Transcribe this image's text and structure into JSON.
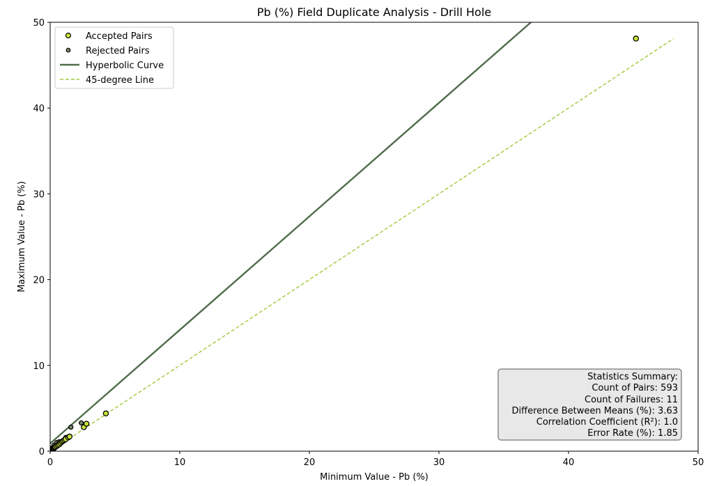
{
  "chart_data": {
    "type": "scatter",
    "title": "Pb (%) Field Duplicate Analysis - Drill Hole",
    "xlabel": "Minimum Value - Pb (%)",
    "ylabel": "Maximum Value - Pb (%)",
    "xlim": [
      0,
      50
    ],
    "ylim": [
      0,
      50
    ],
    "xticks": [
      0,
      10,
      20,
      30,
      40,
      50
    ],
    "yticks": [
      0,
      10,
      20,
      30,
      40,
      50
    ],
    "grid": false,
    "legend_position": "top-left",
    "series": [
      {
        "name": "Accepted Pairs",
        "kind": "scatter",
        "color": "#c6e83a",
        "edge_color": "#000000",
        "points": [
          [
            0.05,
            0.08
          ],
          [
            0.1,
            0.15
          ],
          [
            0.15,
            0.2
          ],
          [
            0.2,
            0.25
          ],
          [
            0.25,
            0.3
          ],
          [
            0.3,
            0.35
          ],
          [
            0.35,
            0.45
          ],
          [
            0.4,
            0.5
          ],
          [
            0.5,
            0.6
          ],
          [
            0.6,
            0.7
          ],
          [
            0.7,
            0.8
          ],
          [
            0.8,
            0.95
          ],
          [
            0.9,
            1.1
          ],
          [
            1.0,
            1.2
          ],
          [
            1.1,
            1.3
          ],
          [
            1.2,
            1.4
          ],
          [
            1.4,
            1.6
          ],
          [
            1.5,
            1.7
          ],
          [
            2.6,
            2.8
          ],
          [
            2.8,
            3.2
          ],
          [
            4.3,
            4.4
          ],
          [
            45.2,
            48.1
          ]
        ]
      },
      {
        "name": "Rejected Pairs",
        "kind": "scatter",
        "color": "#7a8a6a",
        "edge_color": "#000000",
        "points": [
          [
            0.1,
            0.35
          ],
          [
            0.3,
            0.7
          ],
          [
            0.5,
            1.0
          ],
          [
            0.7,
            1.1
          ],
          [
            1.2,
            1.6
          ],
          [
            1.6,
            2.8
          ],
          [
            2.4,
            3.3
          ]
        ]
      },
      {
        "name": "Hyperbolic Curve",
        "kind": "line",
        "color": "#4f6b4a",
        "points": [
          [
            0,
            0.9
          ],
          [
            37.1,
            50
          ]
        ]
      },
      {
        "name": "45-degree Line",
        "kind": "line",
        "dashed": true,
        "color": "#9dc93a",
        "points": [
          [
            0,
            0
          ],
          [
            48.1,
            48.1
          ]
        ]
      }
    ],
    "statistics": {
      "heading": "Statistics Summary:",
      "lines": [
        "Count of Pairs: 593",
        "Count of Failures: 11",
        "Difference Between Means (%): 3.63",
        "Correlation Coefficient (R²): 1.0",
        "Error Rate (%): 1.85"
      ],
      "position": "bottom-right"
    }
  }
}
